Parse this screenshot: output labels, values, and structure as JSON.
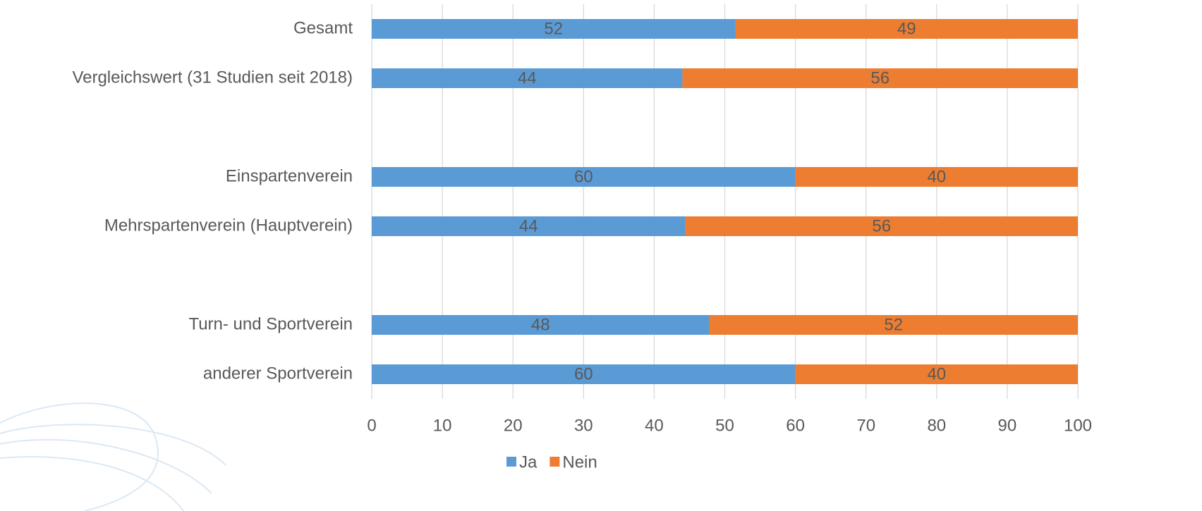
{
  "chart_data": {
    "type": "stacked-bar-horizontal",
    "categories": [
      "Gesamt",
      "Vergleichswert (31 Studien seit 2018)",
      null,
      "Einspartenverein",
      "Mehrspartenverein (Hauptverein)",
      null,
      "Turn- und Sportverein",
      "anderer Sportverein"
    ],
    "series": [
      {
        "name": "Ja",
        "color": "#5b9bd5",
        "values": [
          51.5,
          44,
          null,
          60,
          44.4,
          null,
          47.8,
          60
        ],
        "value_labels": [
          "52",
          "44",
          null,
          "60",
          "44",
          null,
          "48",
          "60"
        ]
      },
      {
        "name": "Nein",
        "color": "#ed7d31",
        "values": [
          48.5,
          56,
          null,
          40,
          55.6,
          null,
          52.2,
          40
        ],
        "value_labels": [
          "49",
          "56",
          null,
          "40",
          "56",
          null,
          "52",
          "40"
        ]
      }
    ],
    "xlim": [
      0,
      100
    ],
    "xticks": [
      0,
      10,
      20,
      30,
      40,
      50,
      60,
      70,
      80,
      90,
      100
    ],
    "grid": true,
    "legend": "bottom"
  }
}
